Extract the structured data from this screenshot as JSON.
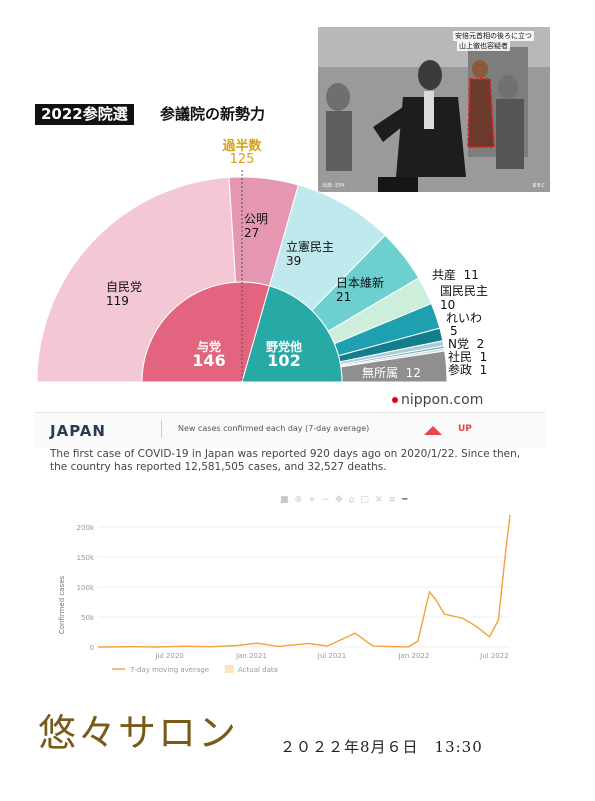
{
  "photo": {
    "caption_line1": "安倍元首相の後ろに立つ",
    "caption_line2": "山上徹也容疑者",
    "credit": "出典: EPA",
    "broadcaster": "BBC"
  },
  "headline": {
    "badge": "2022参院選",
    "title": "参議院の新勢力",
    "majority_label": "過半数",
    "majority_value": "125"
  },
  "seat_chart": {
    "outer": [
      {
        "party": "自民党",
        "seats": "119",
        "color": "#f4c7d4"
      },
      {
        "party": "公明",
        "seats": "27",
        "color": "#e597b2"
      },
      {
        "party": "立憲民主",
        "seats": "39",
        "color": "#bfe9ec"
      },
      {
        "party": "日本維新",
        "seats": "21",
        "color": "#6dcfd0"
      },
      {
        "party": "共産",
        "seats": "11",
        "color": "#cdeedb"
      },
      {
        "party": "国民民主",
        "seats": "10",
        "color": "#1fa0b0"
      },
      {
        "party": "れいわ",
        "seats": "5",
        "color": "#137c8d"
      },
      {
        "party": "N党",
        "seats": "2",
        "color": "#a9ccd6"
      },
      {
        "party": "社民",
        "seats": "1",
        "color": "#7fa9b6"
      },
      {
        "party": "参政",
        "seats": "1",
        "color": "#c8dfe6"
      },
      {
        "party": "無所属",
        "seats": "12",
        "color": "#8f8f8f"
      }
    ],
    "inner": [
      {
        "group": "与党",
        "seats": "146",
        "color": "#e2647f"
      },
      {
        "group": "野党他",
        "seats": "102",
        "color": "#27a9a6"
      }
    ]
  },
  "source_logo": "nippon.com",
  "covid": {
    "country": "JAPAN",
    "metric": "New cases confirmed each day (7-day average)",
    "trend": "UP",
    "description": "The first case of COVID-19 in Japan was reported 920 days ago on 2020/1/22. Since then, the country has reported 12,581,505 cases, and 32,527 deaths.",
    "toolbar_icons": [
      "camera-icon",
      "zoom-icon",
      "plus-icon",
      "minus-icon",
      "pan-icon",
      "reset-icon",
      "box-icon",
      "x-icon",
      "menu-icon",
      "line-icon",
      "line-icon"
    ]
  },
  "chart_data": {
    "type": "line",
    "ylabel": "Confirmed cases",
    "yticks": [
      "0",
      "50k",
      "100k",
      "150k",
      "200k"
    ],
    "xticks": [
      "Jul 2020",
      "Jan 2021",
      "Jul 2021",
      "Jan 2022",
      "Jul 2022"
    ],
    "ylim": [
      0,
      220000
    ],
    "legend": [
      "7-day moving average",
      "Actual data"
    ],
    "series": [
      {
        "name": "7-day moving average",
        "x": [
          "2020-01-22",
          "2020-04-10",
          "2020-06-01",
          "2020-08-05",
          "2020-10-01",
          "2020-12-01",
          "2021-01-12",
          "2021-03-01",
          "2021-05-10",
          "2021-06-20",
          "2021-08-22",
          "2021-10-01",
          "2021-12-20",
          "2022-01-10",
          "2022-02-05",
          "2022-02-20",
          "2022-03-10",
          "2022-04-20",
          "2022-05-20",
          "2022-06-20",
          "2022-07-10",
          "2022-07-25",
          "2022-08-05"
        ],
        "y": [
          0,
          500,
          50,
          1300,
          500,
          2500,
          6500,
          1000,
          6000,
          1500,
          23000,
          1500,
          200,
          10000,
          92000,
          78000,
          55000,
          48000,
          35000,
          17000,
          45000,
          150000,
          220000
        ]
      }
    ]
  },
  "footer": {
    "title": "悠々サロン",
    "date": "２０２２年8月６日　13:30"
  }
}
